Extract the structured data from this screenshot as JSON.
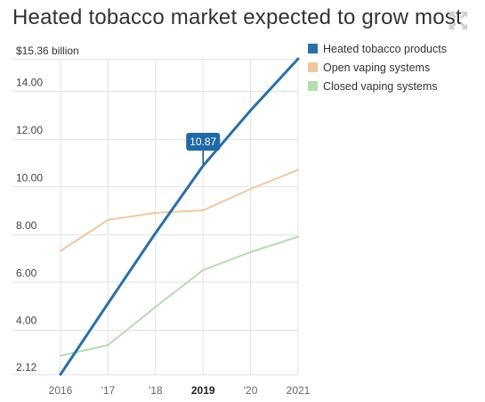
{
  "page": {
    "title": "Heated tobacco market expected to grow most",
    "expand_icon": "expand-arrows-icon"
  },
  "chart_data": {
    "type": "line",
    "title": "Heated tobacco market expected to grow most",
    "xlabel": "",
    "ylabel": "",
    "x": [
      2016,
      2017,
      2018,
      2019,
      2020,
      2021
    ],
    "x_tick_labels": [
      "2016",
      "'17",
      "'18",
      "2019",
      "'20",
      "2021"
    ],
    "highlight_x_index": 3,
    "y_tick_values": [
      4,
      6,
      8,
      10,
      12,
      14
    ],
    "y_tick_labels": [
      "4.00",
      "6.00",
      "8.00",
      "10.00",
      "12.00",
      "14.00"
    ],
    "ylim": [
      2.12,
      15.36
    ],
    "ylim_labels": {
      "min": "2.12",
      "max": "$15.36 billion"
    },
    "grid": true,
    "legend_position": "top-right",
    "series": [
      {
        "name": "Heated tobacco products",
        "color": "#2a6fa8",
        "values": [
          2.12,
          5.1,
          8.05,
          10.87,
          13.2,
          15.36
        ]
      },
      {
        "name": "Open vaping systems",
        "color": "#f0c7a0",
        "values": [
          7.3,
          8.6,
          8.9,
          9.0,
          9.9,
          10.7
        ]
      },
      {
        "name": "Closed vaping systems",
        "color": "#b6dcb0",
        "values": [
          2.9,
          3.35,
          4.95,
          6.5,
          7.25,
          7.9
        ]
      }
    ],
    "annotation": {
      "series_index": 0,
      "x_index": 3,
      "label": "10.87",
      "color": "#1f6aa5"
    }
  }
}
